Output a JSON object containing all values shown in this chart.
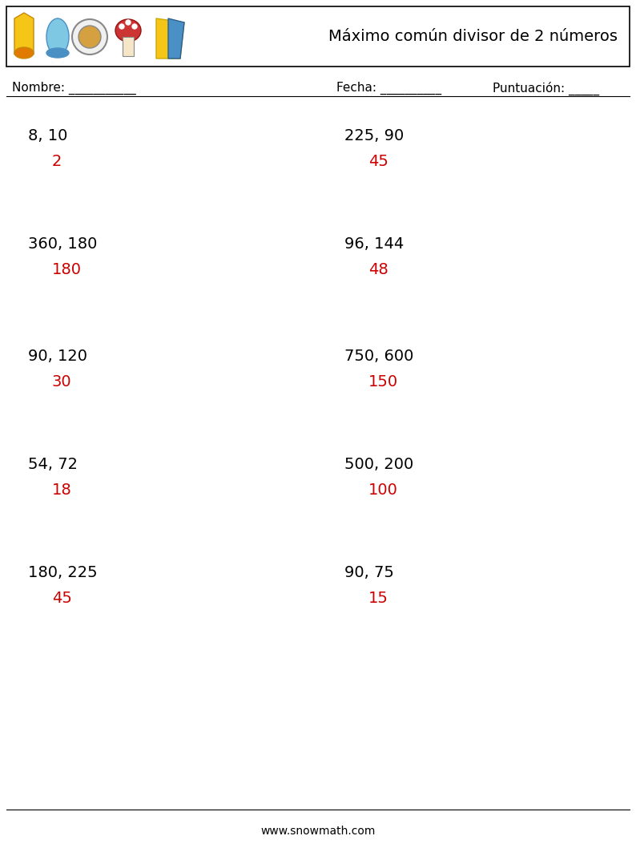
{
  "title": "Máximo común divisor de 2 números",
  "header_label": "Nombre: ___________",
  "fecha_label": "Fecha: __________",
  "puntuacion_label": "Puntuación: _____",
  "website": "www.snowmath.com",
  "questions": [
    {
      "problem": "8, 10",
      "answer": "2"
    },
    {
      "problem": "360, 180",
      "answer": "180"
    },
    {
      "problem": "90, 120",
      "answer": "30"
    },
    {
      "problem": "54, 72",
      "answer": "18"
    },
    {
      "problem": "180, 225",
      "answer": "45"
    }
  ],
  "questions_right": [
    {
      "problem": "225, 90",
      "answer": "45"
    },
    {
      "problem": "96, 144",
      "answer": "48"
    },
    {
      "problem": "750, 600",
      "answer": "150"
    },
    {
      "problem": "500, 200",
      "answer": "100"
    },
    {
      "problem": "90, 75",
      "answer": "15"
    }
  ],
  "problem_color": "#000000",
  "answer_color": "#cc0000",
  "background_color": "#ffffff",
  "font_family": "monospace",
  "header_box_color": "#000000",
  "title_fontsize": 14,
  "label_fontsize": 11,
  "problem_fontsize": 14,
  "answer_fontsize": 14,
  "website_fontsize": 10
}
